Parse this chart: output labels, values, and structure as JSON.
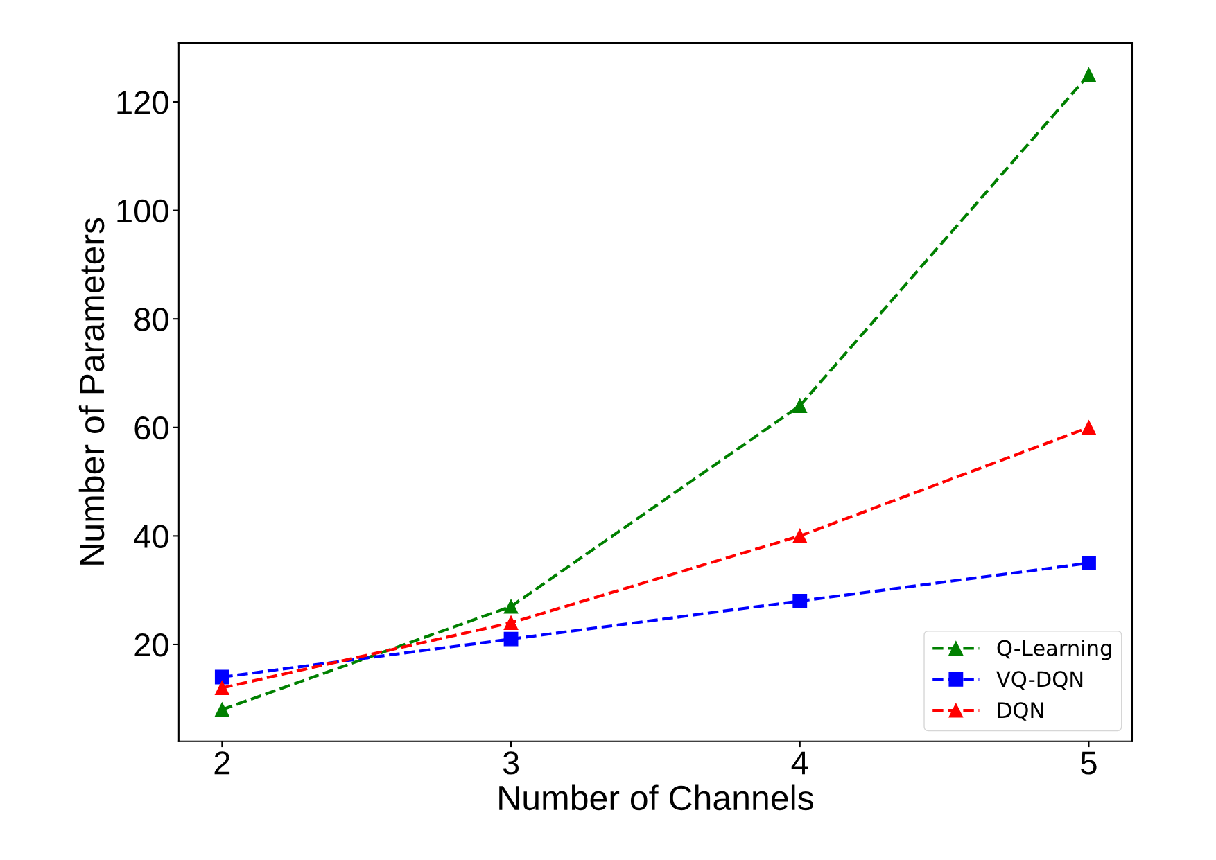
{
  "chart_data": {
    "type": "line",
    "xlabel": "Number of Channels",
    "ylabel": "Number of Parameters",
    "x": [
      2,
      3,
      4,
      5
    ],
    "series": [
      {
        "name": "Q-Learning",
        "color": "#008000",
        "values": [
          8,
          27,
          64,
          125
        ],
        "marker": "triangle"
      },
      {
        "name": "VQ-DQN",
        "color": "#0000ff",
        "values": [
          14,
          21,
          28,
          35
        ],
        "marker": "square"
      },
      {
        "name": "DQN",
        "color": "#ff0000",
        "values": [
          12,
          24,
          40,
          60
        ],
        "marker": "triangle"
      }
    ],
    "xlim": [
      1.85,
      5.15
    ],
    "xticks": [
      2,
      3,
      4,
      5
    ],
    "ylim": [
      2.15,
      130.85
    ],
    "yticks": [
      20,
      40,
      60,
      80,
      100,
      120
    ],
    "line_style": "dashed",
    "legend": "bottom right",
    "grid": false
  }
}
